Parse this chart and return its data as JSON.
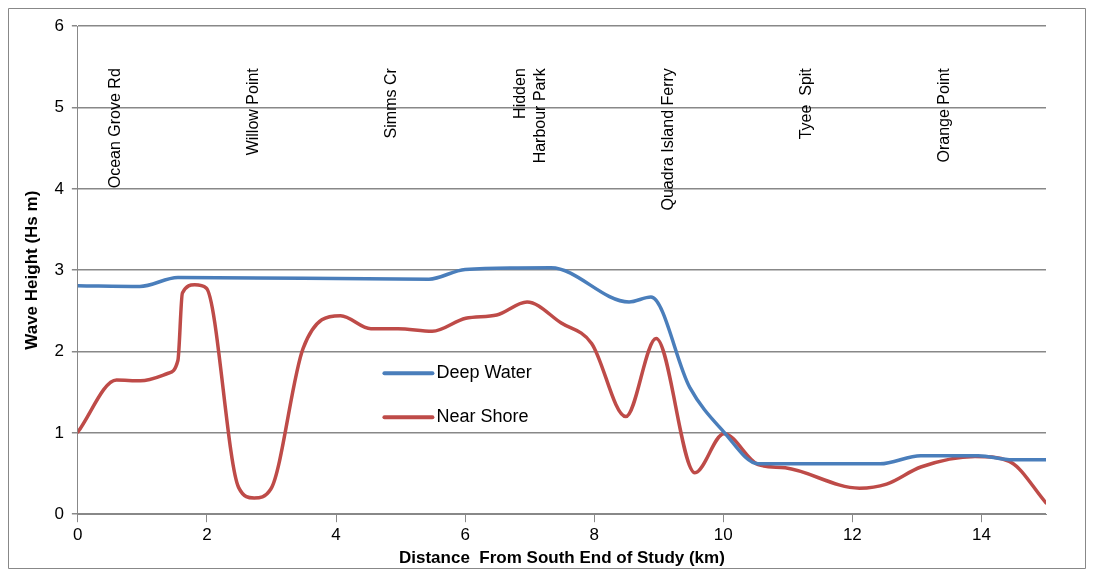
{
  "chart_data": {
    "type": "line",
    "xlabel": "Distance  From South End of Study (km)",
    "ylabel": "Wave Height (Hs m)",
    "xlim": [
      0,
      15
    ],
    "xticks": [
      0,
      2,
      4,
      6,
      8,
      10,
      12,
      14
    ],
    "ylim": [
      0,
      6
    ],
    "yticks": [
      0,
      1,
      2,
      3,
      4,
      5,
      6
    ],
    "grid": "y",
    "legend": "center",
    "marker": "none",
    "line_style": "solid",
    "series": [
      {
        "name": "Deep Water",
        "color": "#4a7ebb",
        "x": [
          0,
          0.96,
          1.55,
          5.44,
          6.0,
          7.33,
          8.54,
          8.88,
          9.48,
          10.01,
          10.54,
          11.06,
          12.43,
          13.06,
          13.95,
          14.48,
          15
        ],
        "values": [
          2.81,
          2.8,
          2.91,
          2.89,
          3.01,
          3.03,
          2.61,
          2.67,
          1.56,
          1.01,
          0.62,
          0.62,
          0.62,
          0.72,
          0.72,
          0.67,
          0.67
        ]
      },
      {
        "name": "Near Shore",
        "color": "#be4b48",
        "x": [
          0,
          0.6,
          0.97,
          1.39,
          1.55,
          1.62,
          1.81,
          1.99,
          2.49,
          2.73,
          2.99,
          3.49,
          4.07,
          4.54,
          4.96,
          5.49,
          6.01,
          6.49,
          6.96,
          7.49,
          7.96,
          8.49,
          8.96,
          9.56,
          10.01,
          10.54,
          10.96,
          12.11,
          12.53,
          13.06,
          13.9,
          14.43,
          15
        ],
        "values": [
          1.01,
          1.65,
          1.64,
          1.73,
          1.89,
          2.72,
          2.82,
          2.78,
          0.33,
          0.2,
          0.31,
          2.04,
          2.44,
          2.28,
          2.28,
          2.25,
          2.41,
          2.45,
          2.61,
          2.35,
          2.1,
          1.2,
          2.16,
          0.51,
          0.99,
          0.61,
          0.57,
          0.32,
          0.37,
          0.58,
          0.71,
          0.65,
          0.14
        ]
      }
    ],
    "annotations": [
      "Ocean Grove Rd",
      "Willow Point",
      "Simms Cr",
      "Hidden\nHarbour Park",
      "Quadra Island Ferry",
      "Tyee  Spit",
      "Orange Point"
    ]
  }
}
